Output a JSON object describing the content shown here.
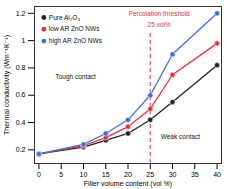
{
  "chart_data": {
    "type": "line",
    "x_label": "Filler volume content (vol %)",
    "y_label": "Thermal conductivity (Wm⁻¹K⁻¹)",
    "x": [
      0,
      10,
      15,
      20,
      25,
      30,
      40
    ],
    "series": [
      {
        "name": "Pure Al₂O₃",
        "color": "#222222",
        "marker": "circle",
        "values": [
          0.17,
          0.22,
          0.27,
          0.32,
          0.42,
          0.55,
          0.82
        ]
      },
      {
        "name": "low AR ZnO NWs",
        "color": "#e8303a",
        "marker": "circle",
        "values": [
          0.17,
          0.23,
          0.29,
          0.37,
          0.5,
          0.75,
          0.98
        ]
      },
      {
        "name": "high AR ZnO NWs",
        "color": "#3a6fe0",
        "marker": "circle",
        "values": [
          0.17,
          0.24,
          0.32,
          0.42,
          0.6,
          0.9,
          1.2
        ]
      }
    ],
    "xlim": [
      -1,
      41
    ],
    "ylim": [
      0.1,
      1.25
    ],
    "xticks": [
      0,
      5,
      10,
      15,
      20,
      25,
      30,
      35,
      40
    ],
    "yticks": [
      0.2,
      0.4,
      0.6,
      0.8,
      1.0,
      1.2
    ],
    "threshold_x": 25,
    "threshold_color": "#e8303a",
    "threshold_label": [
      "Percolation threshold",
      "25 vol%"
    ],
    "annotations": [
      "Tough contact",
      "Weak contact"
    ],
    "legend": "upper left",
    "grid": false
  }
}
